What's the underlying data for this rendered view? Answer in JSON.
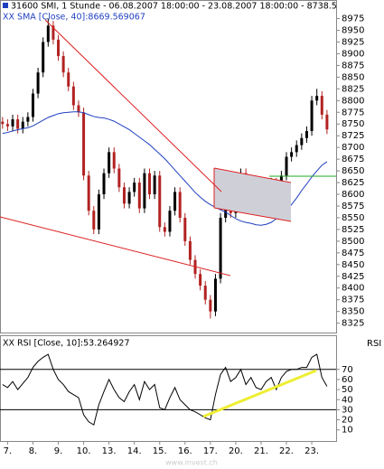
{
  "chart_data": [
    {
      "type": "candlestick",
      "title": "31600 SMI, 1 Stunde - 06.08.2007 18:00:00 - 23.08.2007 18:00:00 - 8738.5",
      "x": [
        -1,
        0,
        1,
        2,
        3,
        4,
        5,
        6,
        7,
        8,
        9,
        10,
        11,
        12,
        13,
        14,
        15,
        16,
        17,
        18,
        19,
        20,
        21,
        22,
        23,
        24,
        25,
        26,
        27,
        28,
        29,
        30,
        31,
        32,
        33,
        34,
        35,
        36,
        37,
        38,
        39,
        40,
        41,
        42,
        43,
        44,
        45,
        46,
        47,
        48,
        49,
        50,
        51,
        52,
        53,
        54,
        55,
        56,
        57,
        58,
        59,
        60,
        61,
        62,
        63
      ],
      "open": [
        8755,
        8750,
        8745,
        8760,
        8740,
        8755,
        8765,
        8815,
        8860,
        8925,
        8960,
        8930,
        8895,
        8860,
        8830,
        8790,
        8775,
        8640,
        8565,
        8525,
        8600,
        8645,
        8690,
        8655,
        8615,
        8580,
        8605,
        8625,
        8570,
        8645,
        8600,
        8640,
        8530,
        8520,
        8565,
        8605,
        8550,
        8500,
        8460,
        8430,
        8405,
        8375,
        8350,
        8420,
        8550,
        8620,
        8560,
        8585,
        8645,
        8600,
        8625,
        8590,
        8580,
        8610,
        8625,
        8590,
        8640,
        8680,
        8690,
        8705,
        8720,
        8735,
        8800,
        8810,
        8770
      ],
      "high": [
        8765,
        8760,
        8770,
        8770,
        8765,
        8775,
        8825,
        8870,
        8935,
        8975,
        8970,
        8940,
        8905,
        8870,
        8840,
        8800,
        8785,
        8650,
        8575,
        8610,
        8655,
        8700,
        8700,
        8665,
        8625,
        8615,
        8635,
        8635,
        8655,
        8655,
        8650,
        8650,
        8540,
        8575,
        8615,
        8615,
        8560,
        8510,
        8470,
        8440,
        8415,
        8385,
        8430,
        8560,
        8630,
        8630,
        8595,
        8655,
        8655,
        8635,
        8635,
        8600,
        8620,
        8635,
        8635,
        8650,
        8690,
        8700,
        8715,
        8730,
        8745,
        8810,
        8825,
        8820,
        8780
      ],
      "low": [
        8740,
        8735,
        8735,
        8730,
        8730,
        8745,
        8755,
        8805,
        8850,
        8915,
        8920,
        8885,
        8850,
        8820,
        8780,
        8765,
        8630,
        8555,
        8515,
        8515,
        8590,
        8635,
        8645,
        8605,
        8570,
        8570,
        8595,
        8560,
        8560,
        8590,
        8590,
        8520,
        8510,
        8510,
        8555,
        8540,
        8490,
        8450,
        8420,
        8395,
        8365,
        8335,
        8340,
        8410,
        8540,
        8550,
        8550,
        8575,
        8590,
        8590,
        8580,
        8570,
        8570,
        8600,
        8580,
        8580,
        8630,
        8670,
        8680,
        8695,
        8710,
        8725,
        8790,
        8760,
        8728.5
      ],
      "close": [
        8750,
        8745,
        8760,
        8740,
        8755,
        8765,
        8815,
        8860,
        8925,
        8960,
        8930,
        8895,
        8860,
        8830,
        8790,
        8775,
        8640,
        8565,
        8525,
        8600,
        8645,
        8690,
        8655,
        8615,
        8580,
        8605,
        8625,
        8570,
        8645,
        8600,
        8640,
        8530,
        8520,
        8565,
        8605,
        8550,
        8500,
        8460,
        8430,
        8405,
        8375,
        8350,
        8420,
        8550,
        8620,
        8560,
        8585,
        8645,
        8600,
        8625,
        8590,
        8580,
        8610,
        8625,
        8590,
        8640,
        8680,
        8690,
        8705,
        8720,
        8735,
        8800,
        8810,
        8770,
        8738.5
      ],
      "up_color": "#000000",
      "down_color": "#b22222",
      "series": [
        {
          "name": "XX SMA [Close, 40]:8669.569067",
          "color": "#1f3fbf",
          "values": [
            8730,
            8732,
            8735,
            8738,
            8740,
            8742,
            8746,
            8752,
            8758,
            8764,
            8768,
            8772,
            8774,
            8775,
            8776,
            8776,
            8774,
            8770,
            8766,
            8764,
            8763,
            8760,
            8756,
            8750,
            8744,
            8738,
            8730,
            8722,
            8714,
            8706,
            8696,
            8686,
            8676,
            8664,
            8652,
            8640,
            8628,
            8616,
            8604,
            8594,
            8585,
            8578,
            8572,
            8567,
            8562,
            8555,
            8548,
            8543,
            8540,
            8538,
            8535,
            8534,
            8536,
            8540,
            8548,
            8555,
            8565,
            8578,
            8592,
            8608,
            8622,
            8637,
            8650,
            8662,
            8669.569067
          ]
        }
      ],
      "xlim": [
        -1.5,
        64.8
      ],
      "xticks": [
        {
          "value": 0,
          "label": "7."
        },
        {
          "value": 5,
          "label": "8."
        },
        {
          "value": 10,
          "label": "9."
        },
        {
          "value": 15,
          "label": "10."
        },
        {
          "value": 20,
          "label": "13."
        },
        {
          "value": 25,
          "label": "14."
        },
        {
          "value": 30,
          "label": "15."
        },
        {
          "value": 35,
          "label": "16."
        },
        {
          "value": 40,
          "label": "17."
        },
        {
          "value": 45,
          "label": "20."
        },
        {
          "value": 50,
          "label": "21."
        },
        {
          "value": 55,
          "label": "22."
        },
        {
          "value": 60,
          "label": "23."
        }
      ],
      "ylim": [
        8305,
        9005
      ],
      "yticks": [
        8325,
        8350,
        8375,
        8400,
        8425,
        8450,
        8475,
        8500,
        8525,
        8550,
        8575,
        8600,
        8625,
        8650,
        8675,
        8700,
        8725,
        8750,
        8775,
        8800,
        8825,
        8850,
        8875,
        8900,
        8925,
        8950,
        8975
      ]
    },
    {
      "type": "line",
      "title": "XX RSI [Close, 10]:53.264927",
      "axis_label": "RSI",
      "series": [
        {
          "name": "RSI",
          "color": "#000000",
          "values": [
            55,
            52,
            58,
            50,
            56,
            62,
            72,
            78,
            82,
            85,
            70,
            60,
            55,
            48,
            45,
            42,
            25,
            18,
            15,
            35,
            48,
            60,
            50,
            42,
            38,
            48,
            55,
            40,
            58,
            50,
            55,
            32,
            30,
            42,
            52,
            40,
            35,
            30,
            28,
            25,
            22,
            20,
            45,
            65,
            72,
            58,
            62,
            70,
            55,
            62,
            52,
            50,
            58,
            62,
            50,
            62,
            68,
            70,
            70,
            72,
            72,
            82,
            85,
            62,
            53.264927
          ]
        }
      ],
      "ylim": [
        -1,
        103
      ],
      "yticks": [
        10,
        20,
        30,
        40,
        50,
        60,
        70
      ],
      "levels": [
        70,
        30
      ]
    },
    {
      "type": "watermark",
      "text": "www.invest.ch"
    }
  ]
}
